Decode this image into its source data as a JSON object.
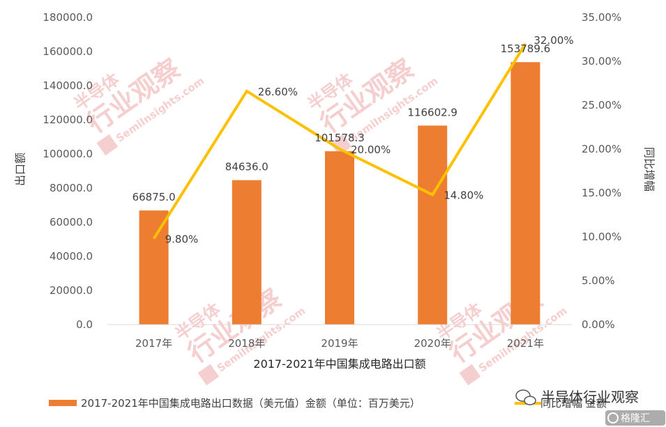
{
  "chart_data": {
    "type": "bar",
    "categories": [
      "2017年",
      "2018年",
      "2019年",
      "2020年",
      "2021年"
    ],
    "series": [
      {
        "name": "2017-2021年中国集成电路出口数据（美元值）金额（单位：百万美元）",
        "type": "bar",
        "axis": "left",
        "values": [
          66875.0,
          84636.0,
          101578.3,
          116602.9,
          153789.6
        ],
        "labels": [
          "66875.0",
          "84636.0",
          "101578.3",
          "116602.9",
          "153789.6"
        ],
        "color": "#ED7D31"
      },
      {
        "name": "同比增幅 金额",
        "type": "line",
        "axis": "right",
        "values": [
          9.8,
          26.6,
          20.0,
          14.8,
          32.0
        ],
        "labels": [
          "9.80%",
          "26.60%",
          "20.00%",
          "14.80%",
          "32.00%"
        ],
        "color": "#FFC000"
      }
    ],
    "xlabel": "2017-2021年中国集成电路出口额",
    "ylabel": "出口额",
    "y2label": "同比增幅",
    "ylim": [
      0,
      180000
    ],
    "y2lim": [
      0,
      35
    ],
    "yticks": [
      "0.0",
      "20000.0",
      "40000.0",
      "60000.0",
      "80000.0",
      "100000.0",
      "120000.0",
      "140000.0",
      "160000.0",
      "180000.0"
    ],
    "y2ticks": [
      "0.00%",
      "5.00%",
      "10.00%",
      "15.00%",
      "20.00%",
      "25.00%",
      "30.00%",
      "35.00%"
    ],
    "grid": false,
    "legend": "bottom"
  },
  "watermark": {
    "line1": "半导体",
    "line2": "行业观察",
    "url": "SemiInsights.com",
    "color": "#F4C7C7"
  },
  "branding": {
    "wechat_name": "半导体行业观察",
    "corner_logo": "格隆汇"
  }
}
